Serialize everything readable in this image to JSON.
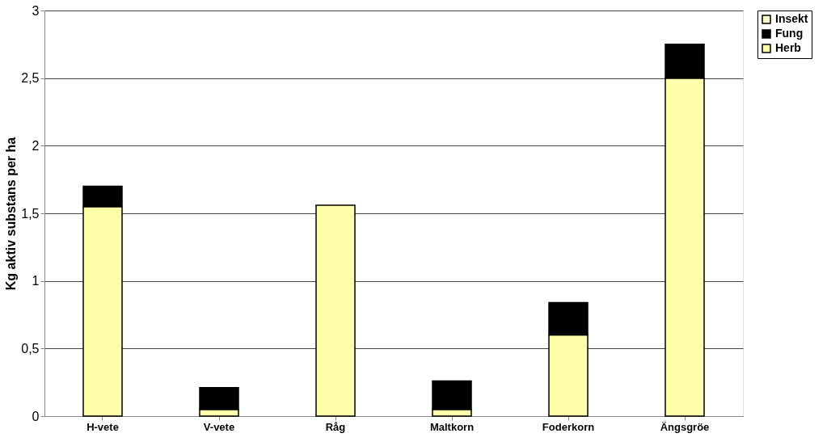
{
  "chart_data": {
    "type": "bar",
    "stacked": true,
    "ylabel": "Kg aktiv substans per ha",
    "categories": [
      "H-vete",
      "V-vete",
      "Råg",
      "Maltkorn",
      "Foderkorn",
      "Ängsgröe"
    ],
    "series": [
      {
        "name": "Herb",
        "color": "#ffffaa",
        "values": [
          1.55,
          0.05,
          1.56,
          0.05,
          0.6,
          2.5
        ]
      },
      {
        "name": "Fung",
        "color": "#000000",
        "values": [
          0.15,
          0.16,
          null,
          0.21,
          0.24,
          0.25
        ]
      },
      {
        "name": "Insekt",
        "color": "#ffffcc",
        "values": [
          null,
          null,
          null,
          null,
          null,
          null
        ]
      }
    ],
    "ylim": [
      0,
      3
    ],
    "yticks": [
      0,
      {
        "value": 0.5,
        "label": "0,5"
      },
      1,
      {
        "value": 1.5,
        "label": "1,5"
      },
      2,
      {
        "value": 2.5,
        "label": "2,5"
      },
      3
    ],
    "grid": "y",
    "legend": "right"
  }
}
